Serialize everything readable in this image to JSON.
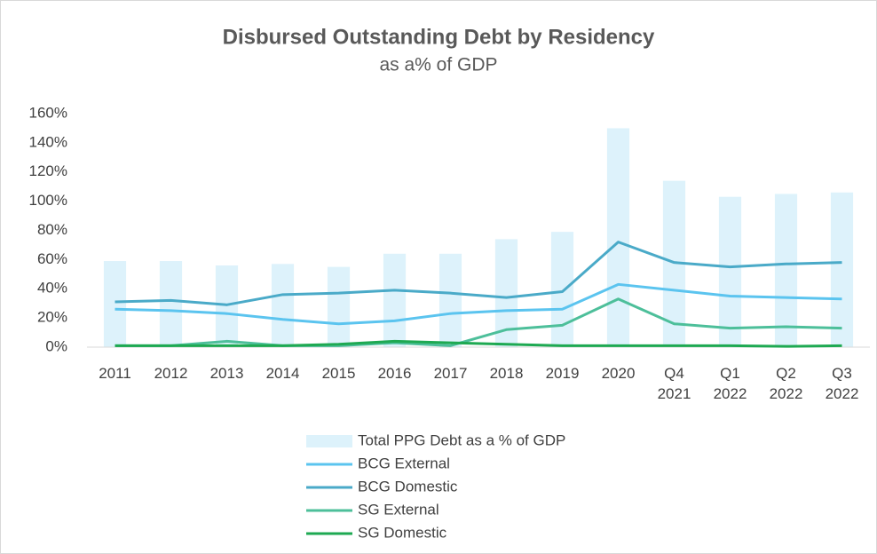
{
  "chart_data": {
    "type": "combo",
    "title": "Disbursed Outstanding Debt by Residency",
    "subtitle": "as a% of GDP",
    "categories": [
      "2011",
      "2012",
      "2013",
      "2014",
      "2015",
      "2016",
      "2017",
      "2018",
      "2019",
      "2020",
      "Q4 2021",
      "Q1 2022",
      "Q2 2022",
      "Q3 2022"
    ],
    "series": [
      {
        "name": "Total PPG Debt as a % of GDP",
        "type": "bar",
        "color": "#ddf2fb",
        "values": [
          59,
          59,
          56,
          57,
          55,
          64,
          64,
          74,
          79,
          150,
          114,
          103,
          105,
          106
        ]
      },
      {
        "name": "BCG External",
        "type": "line",
        "color": "#5bc4ef",
        "values": [
          26,
          25,
          23,
          19,
          16,
          18,
          23,
          25,
          26,
          43,
          39,
          35,
          34,
          33
        ]
      },
      {
        "name": "BCG Domestic",
        "type": "line",
        "color": "#4aaac8",
        "values": [
          31,
          32,
          29,
          36,
          37,
          39,
          37,
          34,
          38,
          72,
          58,
          55,
          57,
          58
        ]
      },
      {
        "name": "SG External",
        "type": "line",
        "color": "#4dbf9a",
        "values": [
          1,
          1,
          4,
          1,
          1,
          3,
          1,
          12,
          15,
          33,
          16,
          13,
          14,
          13
        ]
      },
      {
        "name": "SG Domestic",
        "type": "line",
        "color": "#1ea952",
        "values": [
          1,
          1,
          1,
          1,
          2,
          4,
          3,
          2,
          1,
          1,
          1,
          1,
          0.5,
          1
        ]
      }
    ],
    "ylim": [
      0,
      160
    ],
    "yticks": [
      {
        "value": 0,
        "label": "0%"
      },
      {
        "value": 20,
        "label": "20%"
      },
      {
        "value": 40,
        "label": "40%"
      },
      {
        "value": 60,
        "label": "60%"
      },
      {
        "value": 80,
        "label": "80%"
      },
      {
        "value": 100,
        "label": "100%"
      },
      {
        "value": 120,
        "label": "120%"
      },
      {
        "value": 140,
        "label": "140%"
      },
      {
        "value": 160,
        "label": "160%"
      }
    ],
    "legend": "bottom"
  }
}
